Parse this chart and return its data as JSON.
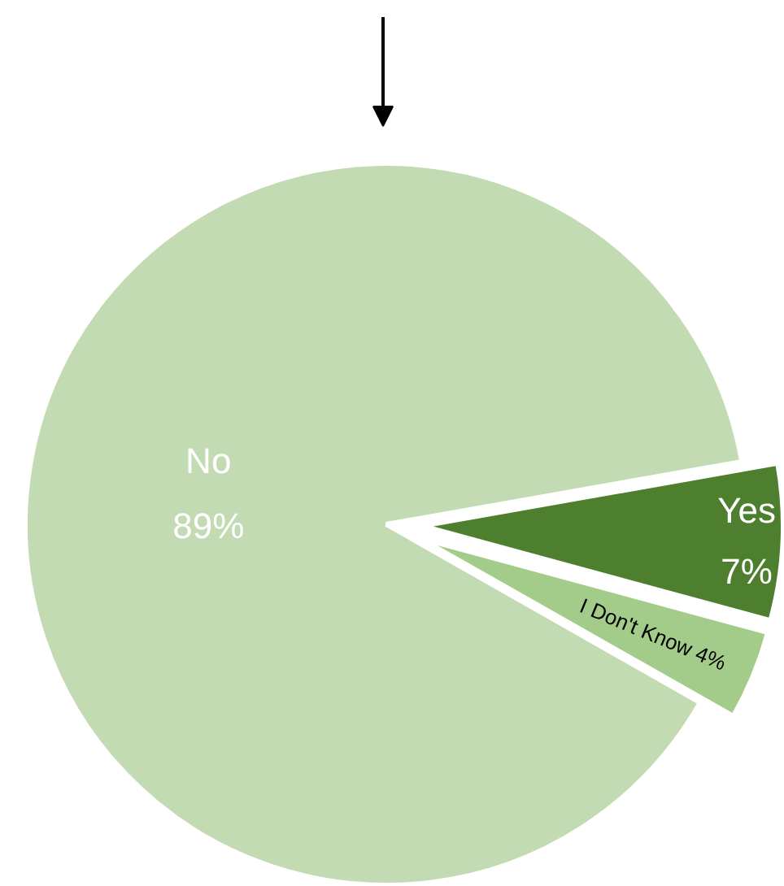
{
  "chart_data": {
    "type": "pie",
    "categories": [
      "Yes",
      "I Don't Know",
      "No"
    ],
    "values": [
      7,
      4,
      89
    ],
    "colors": [
      "#4e7f2f",
      "#a3cc8a",
      "#c2dbb2"
    ],
    "value_labels": [
      "7%",
      "4%",
      "89%"
    ]
  }
}
